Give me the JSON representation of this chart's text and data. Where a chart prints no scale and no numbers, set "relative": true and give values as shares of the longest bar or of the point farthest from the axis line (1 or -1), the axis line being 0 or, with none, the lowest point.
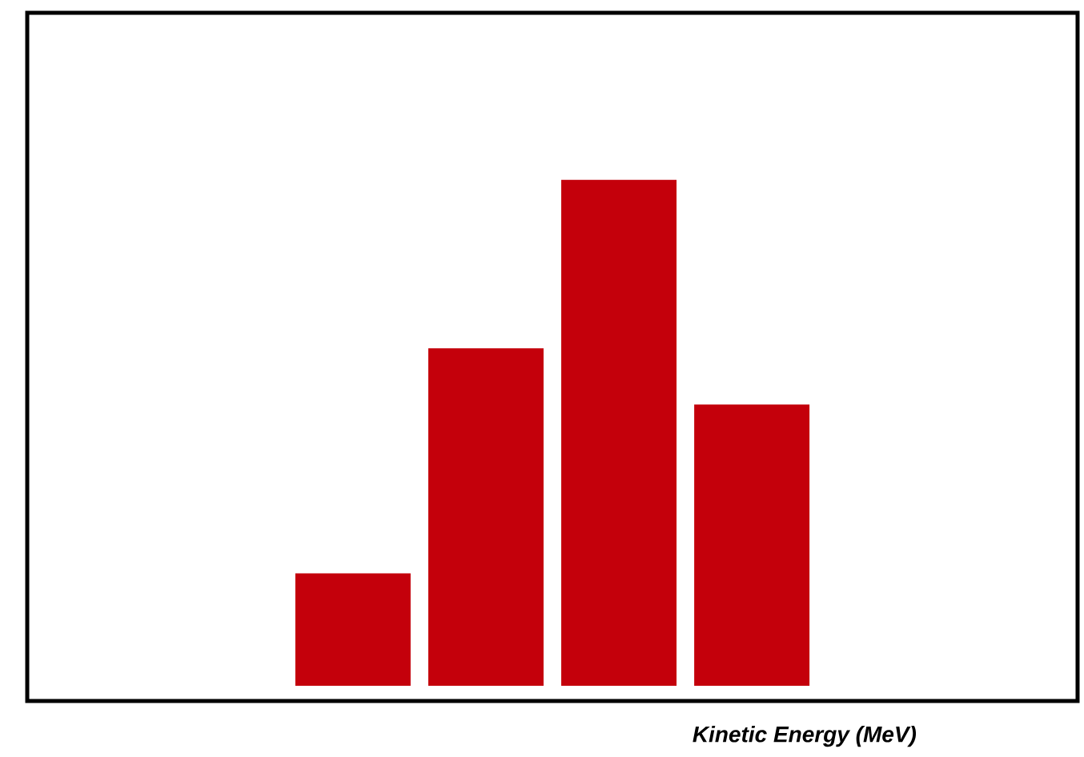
{
  "chart_data": {
    "type": "bar",
    "xlabel": "Kinetic Energy (MeV)",
    "categories": [
      null,
      null,
      null,
      null
    ],
    "values": [
      0.222,
      0.667,
      1,
      0.556
    ],
    "color": "#c4000b",
    "relative": true,
    "grid": false
  }
}
